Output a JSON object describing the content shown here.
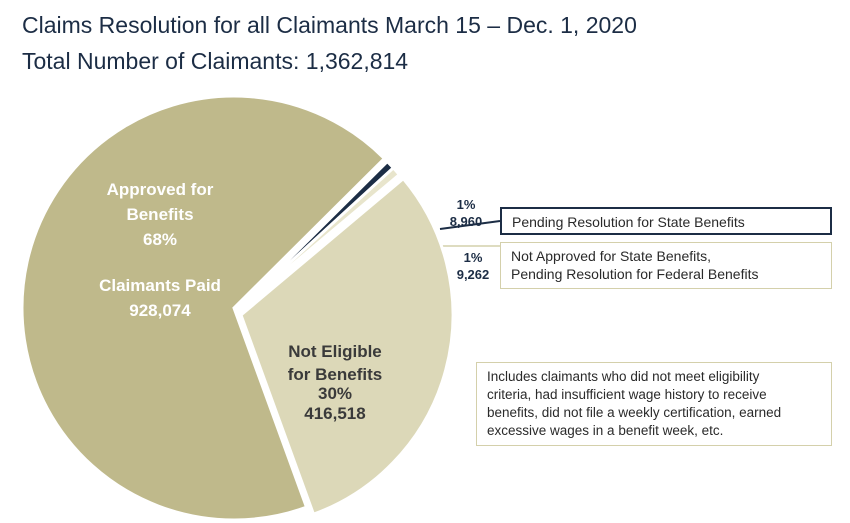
{
  "title": "Claims Resolution for all Claimants March 15 – Dec. 1, 2020",
  "subtitle": "Total Number of Claimants: 1,362,814",
  "chart_data": {
    "type": "pie",
    "slices": [
      {
        "key": "approved",
        "value": 928074,
        "percent": "68%",
        "color": "#bfb98b",
        "label_color": "#ffffff",
        "label_lines": [
          "Approved for",
          "Benefits",
          "68%"
        ],
        "sub_label_lines": [
          "Claimants Paid",
          "928,074"
        ]
      },
      {
        "key": "pending_state",
        "value": 8960,
        "percent": "1%",
        "value_text": "8,960",
        "color": "#1c2d45"
      },
      {
        "key": "not_approved_state",
        "value": 9262,
        "percent": "1%",
        "value_text": "9,262",
        "color": "#e8e5cc"
      },
      {
        "key": "not_eligible",
        "value": 416518,
        "percent": "30%",
        "color": "#dcd8b8",
        "label_color": "#3a3a3a",
        "label_lines": [
          "Not Eligible",
          "for Benefits",
          "30%",
          "416,518"
        ]
      }
    ]
  },
  "callouts": {
    "pending_state": [
      "Pending Resolution for State Benefits"
    ],
    "not_approved_state": [
      "Not Approved for State Benefits,",
      "Pending Resolution for Federal Benefits"
    ],
    "not_eligible": [
      "Includes claimants who did not meet eligibility",
      "criteria, had insufficient wage history to receive",
      "benefits, did not file a weekly certification, earned",
      "excessive wages in a benefit week, etc."
    ]
  }
}
